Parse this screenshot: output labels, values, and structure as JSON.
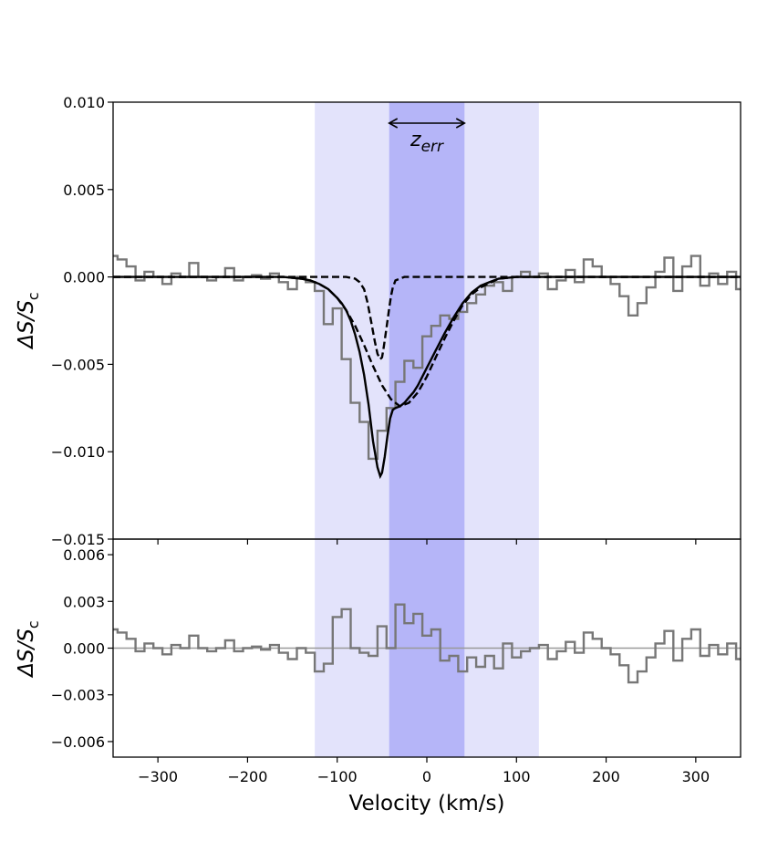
{
  "chart_data": {
    "type": "line",
    "x_range": [
      -350,
      350
    ],
    "xlabel": "Velocity (km/s)",
    "x_ticks": [
      -300,
      -200,
      -100,
      0,
      100,
      200,
      300
    ],
    "x_tick_labels": [
      "−300",
      "−200",
      "−100",
      "0",
      "100",
      "200",
      "300"
    ],
    "shaded_regions": [
      {
        "x_range": [
          -125,
          125
        ],
        "color": "#e3e3fb"
      },
      {
        "x_range": [
          -42,
          42
        ],
        "color": "#b5b5f8"
      }
    ],
    "annotation": {
      "text": "z",
      "subscript": "err",
      "x_range": [
        -42,
        42
      ],
      "arrow": "double"
    },
    "panels": [
      {
        "name": "top",
        "ylabel": "ΔS/S",
        "ylabel_subscript": "c",
        "ylim": [
          -0.015,
          0.01
        ],
        "y_ticks": [
          0.01,
          0.005,
          0.0,
          -0.005,
          -0.01,
          -0.015
        ],
        "y_tick_labels": [
          "0.010",
          "0.005",
          "0.000",
          "−0.005",
          "−0.010",
          "−0.015"
        ],
        "series": [
          {
            "style": "steps-mid",
            "color": "#777777",
            "x": [
              -350,
              -340,
              -330,
              -320,
              -310,
              -300,
              -290,
              -280,
              -270,
              -260,
              -250,
              -240,
              -230,
              -220,
              -210,
              -200,
              -190,
              -180,
              -170,
              -160,
              -150,
              -140,
              -130,
              -120,
              -110,
              -100,
              -90,
              -80,
              -70,
              -60,
              -50,
              -40,
              -30,
              -20,
              -10,
              0,
              10,
              20,
              30,
              40,
              50,
              60,
              70,
              80,
              90,
              100,
              110,
              120,
              130,
              140,
              150,
              160,
              170,
              180,
              190,
              200,
              210,
              220,
              230,
              240,
              250,
              260,
              270,
              280,
              290,
              300,
              310,
              320,
              330,
              340,
              350
            ],
            "y": [
              0.0012,
              0.001,
              0.0006,
              -0.0002,
              0.0003,
              0.0,
              -0.0004,
              0.0002,
              0.0,
              0.0008,
              0.0,
              -0.0002,
              0.0,
              0.0005,
              -0.0002,
              0.0,
              0.0001,
              -0.0001,
              0.0002,
              -0.0003,
              -0.0007,
              0.0,
              -0.0003,
              -0.0008,
              -0.0027,
              -0.0018,
              -0.0047,
              -0.0072,
              -0.0083,
              -0.0104,
              -0.0088,
              -0.0075,
              -0.006,
              -0.0048,
              -0.0052,
              -0.0034,
              -0.0028,
              -0.0022,
              -0.0024,
              -0.002,
              -0.0015,
              -0.001,
              -0.0005,
              -0.0003,
              -0.0008,
              0.0,
              0.0003,
              0.0,
              0.0002,
              -0.0007,
              -0.0002,
              0.0004,
              -0.0003,
              0.001,
              0.0006,
              0.0,
              -0.0004,
              -0.0011,
              -0.0022,
              -0.0015,
              -0.0006,
              0.0003,
              0.0011,
              -0.0008,
              0.0006,
              0.0012,
              -0.0005,
              0.0002,
              -0.0004,
              0.0003,
              -0.0007
            ]
          },
          {
            "style": "solid",
            "color": "#000000",
            "x": [
              -350,
              -160,
              -140,
              -130,
              -120,
              -110,
              -100,
              -95,
              -90,
              -85,
              -80,
              -75,
              -70,
              -65,
              -60,
              -55,
              -52,
              -50,
              -47,
              -44,
              -41,
              -38,
              -35,
              -30,
              -25,
              -20,
              -15,
              -10,
              -5,
              0,
              5,
              10,
              20,
              30,
              40,
              50,
              60,
              70,
              80,
              90,
              100,
              120,
              140,
              350
            ],
            "y": [
              0,
              0,
              -0.0001,
              -0.0002,
              -0.0004,
              -0.0007,
              -0.0012,
              -0.0015,
              -0.0019,
              -0.0025,
              -0.0033,
              -0.0043,
              -0.0056,
              -0.0073,
              -0.0094,
              -0.0109,
              -0.0114,
              -0.0112,
              -0.0103,
              -0.0091,
              -0.0081,
              -0.0076,
              -0.0075,
              -0.0074,
              -0.0072,
              -0.0069,
              -0.0066,
              -0.0062,
              -0.0057,
              -0.0052,
              -0.0047,
              -0.0042,
              -0.0032,
              -0.0023,
              -0.0015,
              -0.0009,
              -0.0005,
              -0.0003,
              -0.0001,
              -5e-05,
              0,
              0,
              0,
              0
            ]
          },
          {
            "style": "dashed",
            "color": "#000000",
            "x": [
              -350,
              -90,
              -80,
              -75,
              -70,
              -66,
              -62,
              -58,
              -55,
              -52,
              -50,
              -48,
              -45,
              -42,
              -40,
              -38,
              -35,
              -30,
              -25,
              -20,
              350
            ],
            "y": [
              0,
              0,
              -0.0001,
              -0.0003,
              -0.0007,
              -0.0015,
              -0.0026,
              -0.0037,
              -0.0044,
              -0.0047,
              -0.0046,
              -0.004,
              -0.0029,
              -0.0018,
              -0.0011,
              -0.0006,
              -0.0002,
              -0.0001,
              0,
              0,
              0
            ]
          },
          {
            "style": "dashed",
            "color": "#000000",
            "x": [
              -350,
              -160,
              -140,
              -130,
              -120,
              -110,
              -100,
              -90,
              -80,
              -70,
              -60,
              -50,
              -40,
              -30,
              -20,
              -10,
              0,
              10,
              20,
              30,
              40,
              50,
              60,
              80,
              100,
              350
            ],
            "y": [
              0,
              0,
              -0.0001,
              -0.0002,
              -0.0004,
              -0.0007,
              -0.0012,
              -0.0019,
              -0.0028,
              -0.0039,
              -0.0051,
              -0.0062,
              -0.007,
              -0.0074,
              -0.0072,
              -0.0066,
              -0.0057,
              -0.0046,
              -0.0035,
              -0.0025,
              -0.0016,
              -0.001,
              -0.0006,
              -0.0001,
              0,
              0
            ]
          }
        ]
      },
      {
        "name": "bottom",
        "ylabel": "ΔS/S",
        "ylabel_subscript": "c",
        "ylim": [
          -0.007,
          0.007
        ],
        "y_ticks": [
          0.006,
          0.003,
          0.0,
          -0.003,
          -0.006
        ],
        "y_tick_labels": [
          "0.006",
          "0.003",
          "0.000",
          "−0.003",
          "−0.006"
        ],
        "series": [
          {
            "style": "steps-mid",
            "color": "#777777",
            "x": [
              -350,
              -340,
              -330,
              -320,
              -310,
              -300,
              -290,
              -280,
              -270,
              -260,
              -250,
              -240,
              -230,
              -220,
              -210,
              -200,
              -190,
              -180,
              -170,
              -160,
              -150,
              -140,
              -130,
              -120,
              -110,
              -100,
              -90,
              -80,
              -70,
              -60,
              -50,
              -40,
              -30,
              -20,
              -10,
              0,
              10,
              20,
              30,
              40,
              50,
              60,
              70,
              80,
              90,
              100,
              110,
              120,
              130,
              140,
              150,
              160,
              170,
              180,
              190,
              200,
              210,
              220,
              230,
              240,
              250,
              260,
              270,
              280,
              290,
              300,
              310,
              320,
              330,
              340,
              350
            ],
            "y": [
              0.0012,
              0.001,
              0.0006,
              -0.0002,
              0.0003,
              0.0,
              -0.0004,
              0.0002,
              0.0,
              0.0008,
              0.0,
              -0.0002,
              0.0,
              0.0005,
              -0.0002,
              0.0,
              0.0001,
              -0.0001,
              0.0002,
              -0.0003,
              -0.0007,
              0.0,
              -0.0003,
              -0.0015,
              -0.001,
              0.002,
              0.0025,
              0.0,
              -0.0003,
              -0.0005,
              0.0014,
              0.0,
              0.0028,
              0.0016,
              0.0022,
              0.0008,
              0.0012,
              -0.0008,
              -0.0005,
              -0.0015,
              -0.0006,
              -0.0012,
              -0.0005,
              -0.0013,
              0.0003,
              -0.0006,
              -0.0002,
              0.0,
              0.0002,
              -0.0007,
              -0.0002,
              0.0004,
              -0.0003,
              0.001,
              0.0006,
              0.0,
              -0.0004,
              -0.0011,
              -0.0022,
              -0.0015,
              -0.0006,
              0.0003,
              0.0011,
              -0.0008,
              0.0006,
              0.0012,
              -0.0005,
              0.0002,
              -0.0004,
              0.0003,
              -0.0007
            ]
          }
        ]
      }
    ]
  }
}
